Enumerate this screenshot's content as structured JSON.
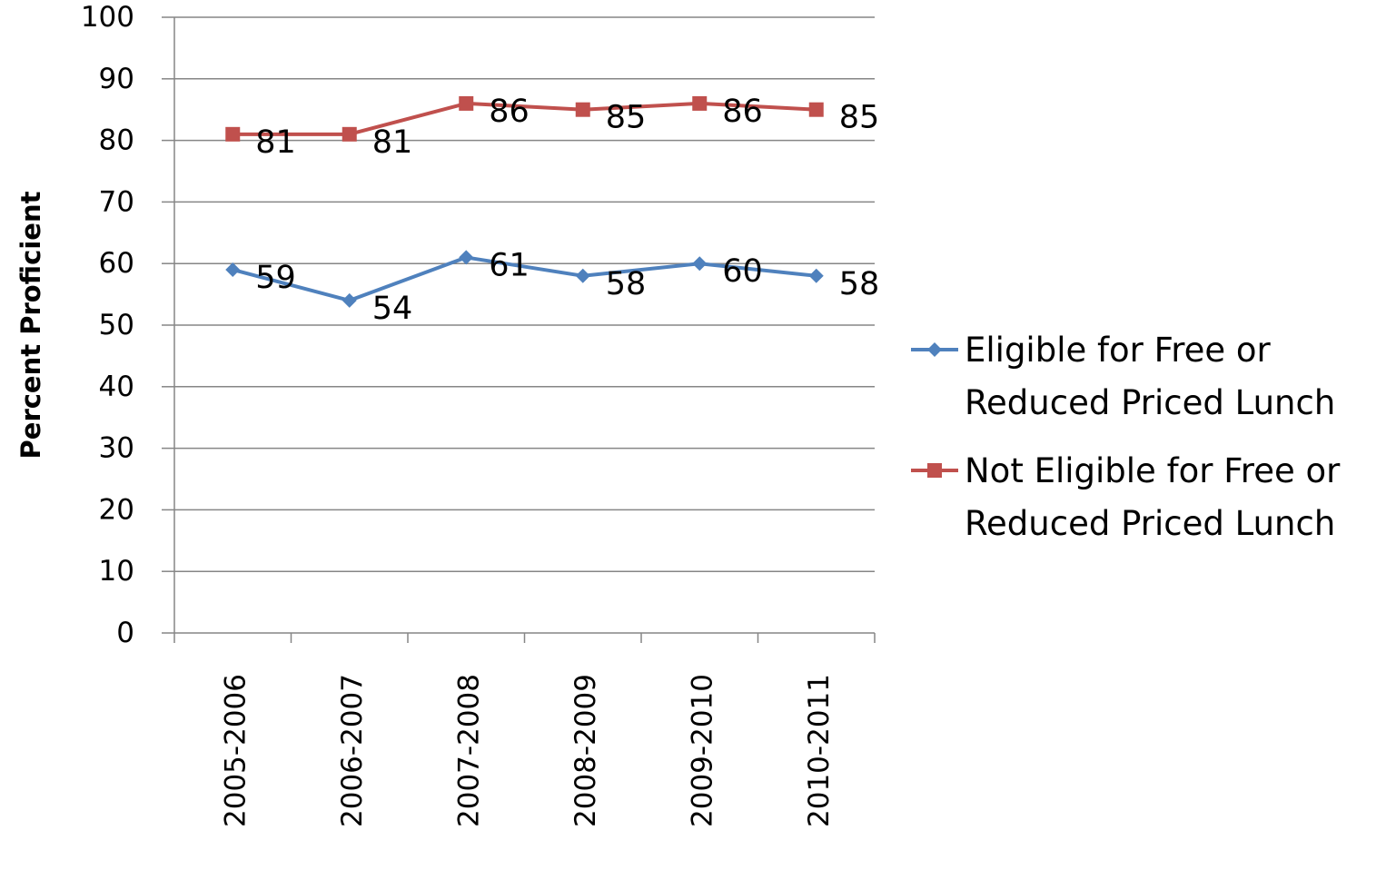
{
  "chart_data": {
    "type": "line",
    "title": "",
    "xlabel": "",
    "ylabel": "Percent Proficient",
    "categories": [
      "2005-2006",
      "2006-2007",
      "2007-2008",
      "2008-2009",
      "2009-2010",
      "2010-2011"
    ],
    "y_ticks": [
      "0",
      "10",
      "20",
      "30",
      "40",
      "50",
      "60",
      "70",
      "80",
      "90",
      "100"
    ],
    "ylim": [
      0,
      100
    ],
    "grid": true,
    "legend_position": "right",
    "series": [
      {
        "name": "Eligible for Free or Reduced Priced Lunch",
        "legend_lines": [
          "Eligible for Free or",
          "Reduced Priced Lunch"
        ],
        "values": [
          59,
          54,
          61,
          58,
          60,
          58
        ],
        "color": "#4f81bd",
        "marker": "diamond"
      },
      {
        "name": "Not Eligible for Free or Reduced Priced Lunch",
        "legend_lines": [
          "Not Eligible for Free or",
          "Reduced Priced Lunch"
        ],
        "values": [
          81,
          81,
          86,
          85,
          86,
          85
        ],
        "color": "#c0504d",
        "marker": "square"
      }
    ]
  }
}
